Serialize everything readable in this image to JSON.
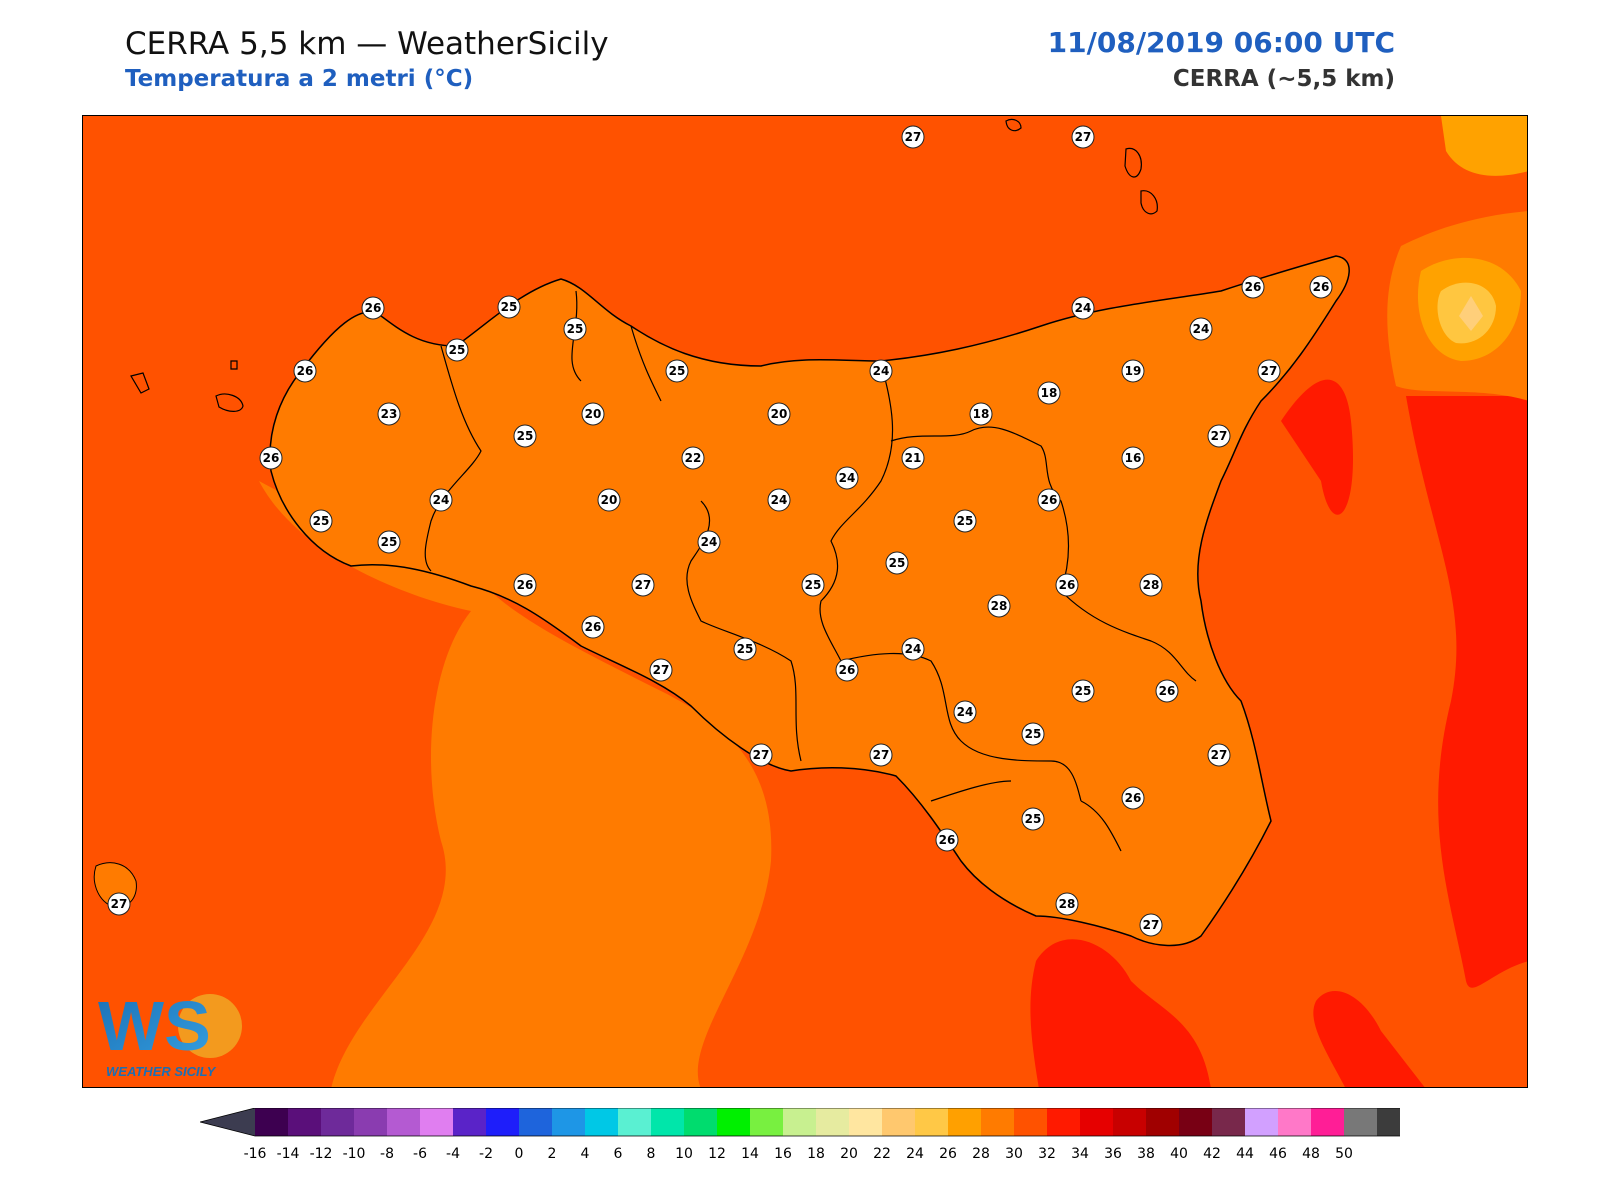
{
  "header": {
    "title": "CERRA 5,5 km — WeatherSicily",
    "subtitle": "Temperatura a 2 metri (°C)",
    "datetime": "11/08/2019 06:00 UTC",
    "model": "CERRA (~5,5 km)"
  },
  "logo": {
    "text": "WS",
    "caption": "WEATHER SICILY"
  },
  "colors": {
    "sea_base": "#ff5200",
    "warm_sea": "#ff7b00",
    "hot_sea": "#ff1a00",
    "land_26": "#ff7b00",
    "land_24": "#ffa200",
    "land_22": "#ffc640",
    "land_20": "#ffcf7a",
    "land_18": "#ffd9a0"
  },
  "station_values": [
    {
      "id": "s1",
      "value": "27"
    },
    {
      "id": "s2",
      "value": "27"
    },
    {
      "id": "s3",
      "value": "26"
    },
    {
      "id": "s4",
      "value": "25"
    },
    {
      "id": "s5",
      "value": "25"
    },
    {
      "id": "s6",
      "value": "25"
    },
    {
      "id": "s7",
      "value": "26"
    },
    {
      "id": "s8",
      "value": "23"
    },
    {
      "id": "s9",
      "value": "20"
    },
    {
      "id": "s10",
      "value": "25"
    },
    {
      "id": "s11",
      "value": "25"
    },
    {
      "id": "s12",
      "value": "20"
    },
    {
      "id": "s13",
      "value": "24"
    },
    {
      "id": "s14",
      "value": "26"
    },
    {
      "id": "s15",
      "value": "24"
    },
    {
      "id": "s16",
      "value": "26"
    },
    {
      "id": "s17",
      "value": "26"
    },
    {
      "id": "s18",
      "value": "24"
    },
    {
      "id": "s19",
      "value": "19"
    },
    {
      "id": "s20",
      "value": "27"
    },
    {
      "id": "s21",
      "value": "18"
    },
    {
      "id": "s22",
      "value": "18"
    },
    {
      "id": "s23",
      "value": "27"
    },
    {
      "id": "s24",
      "value": "26"
    },
    {
      "id": "s25",
      "value": "25"
    },
    {
      "id": "s26",
      "value": "25"
    },
    {
      "id": "s27",
      "value": "24"
    },
    {
      "id": "s28",
      "value": "20"
    },
    {
      "id": "s29",
      "value": "22"
    },
    {
      "id": "s30",
      "value": "24"
    },
    {
      "id": "s31",
      "value": "21"
    },
    {
      "id": "s32",
      "value": "16"
    },
    {
      "id": "s33",
      "value": "26"
    },
    {
      "id": "s34",
      "value": "25"
    },
    {
      "id": "s35",
      "value": "25"
    },
    {
      "id": "s36",
      "value": "24"
    },
    {
      "id": "s37",
      "value": "24"
    },
    {
      "id": "s38",
      "value": "26"
    },
    {
      "id": "s39",
      "value": "27"
    },
    {
      "id": "s40",
      "value": "25"
    },
    {
      "id": "s41",
      "value": "26"
    },
    {
      "id": "s42",
      "value": "28"
    },
    {
      "id": "s43",
      "value": "28"
    },
    {
      "id": "s44",
      "value": "25"
    },
    {
      "id": "s45",
      "value": "24"
    },
    {
      "id": "s46",
      "value": "26"
    },
    {
      "id": "s47",
      "value": "27"
    },
    {
      "id": "s48",
      "value": "26"
    },
    {
      "id": "s49",
      "value": "25"
    },
    {
      "id": "s50",
      "value": "25"
    },
    {
      "id": "s51",
      "value": "27"
    },
    {
      "id": "s52",
      "value": "27"
    },
    {
      "id": "s53",
      "value": "24"
    },
    {
      "id": "s54",
      "value": "27"
    },
    {
      "id": "s55",
      "value": "26"
    },
    {
      "id": "s56",
      "value": "26"
    },
    {
      "id": "s57",
      "value": "25"
    },
    {
      "id": "s58",
      "value": "28"
    },
    {
      "id": "s59",
      "value": "27"
    },
    {
      "id": "s60",
      "value": "27"
    },
    {
      "id": "s61",
      "value": "26"
    }
  ],
  "colorbar": {
    "ticks": [
      "-16",
      "-14",
      "-12",
      "-10",
      "-8",
      "-6",
      "-4",
      "-2",
      "0",
      "2",
      "4",
      "6",
      "8",
      "10",
      "12",
      "14",
      "16",
      "18",
      "20",
      "22",
      "24",
      "26",
      "28",
      "30",
      "32",
      "34",
      "36",
      "38",
      "40",
      "42",
      "44",
      "46",
      "48",
      "50"
    ],
    "colors": [
      "#3d0050",
      "#5a0f7a",
      "#6e2a9a",
      "#8a3cb0",
      "#b45ad2",
      "#e07ef0",
      "#5a23c8",
      "#1e1efa",
      "#1e64dc",
      "#1e96e6",
      "#00c8e6",
      "#5af0d2",
      "#00e6aa",
      "#00dc6e",
      "#00f000",
      "#78f040",
      "#c8f090",
      "#e6eba0",
      "#ffe6a0",
      "#ffc86e",
      "#ffc846",
      "#ffa000",
      "#ff7b00",
      "#ff5200",
      "#ff1a00",
      "#e60000",
      "#c80000",
      "#a00000",
      "#780014",
      "#78284b",
      "#d2a0ff",
      "#ff78c8",
      "#ff1e96",
      "#787878",
      "#3c3c3c"
    ],
    "under_color": "#3c3c50",
    "over_color": "#000000"
  }
}
